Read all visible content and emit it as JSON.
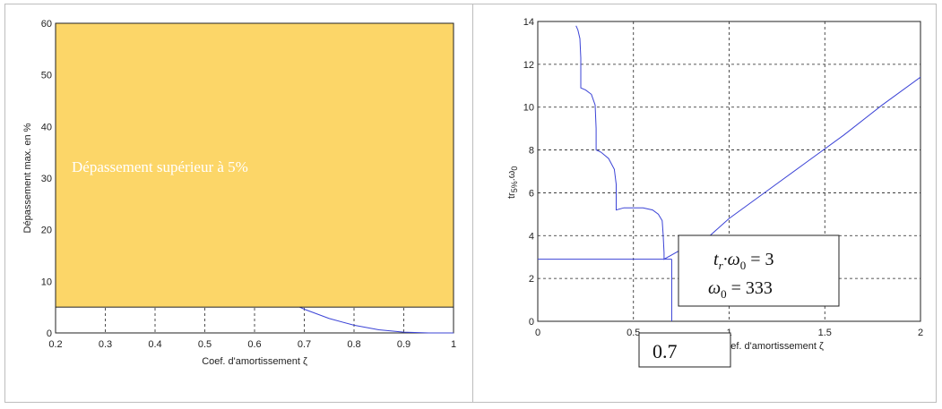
{
  "chart_data": [
    {
      "type": "line",
      "xlabel": "Coef. d'amortissement  ζ",
      "ylabel": "Dépassement max. en %",
      "xlim": [
        0.2,
        1.0
      ],
      "ylim": [
        0,
        60
      ],
      "xticks": [
        "0.2",
        "0.3",
        "0.4",
        "0.5",
        "0.6",
        "0.7",
        "0.8",
        "0.9",
        "1"
      ],
      "yticks": [
        "0",
        "10",
        "20",
        "30",
        "40",
        "50",
        "60"
      ],
      "grid": true,
      "colors": {
        "curve": "#3b43d6",
        "highlight": "#fcd668"
      },
      "series": [
        {
          "x": [
            0.6,
            0.65,
            0.7,
            0.75,
            0.8,
            0.85,
            0.9,
            0.95,
            1.0
          ],
          "y": [
            9.5,
            6.8,
            4.6,
            2.8,
            1.5,
            0.6,
            0.15,
            0.0,
            0.0
          ]
        }
      ],
      "region": {
        "x": [
          0.2,
          1.0
        ],
        "y": [
          5,
          60
        ],
        "label": "Dépassement supérieur à 5%"
      }
    },
    {
      "type": "line",
      "xlabel": "Coef. d'amortissement  ζ",
      "ylabel": "tr5%.ω0",
      "ylabel_main": "tr",
      "ylabel_sub": "5%",
      "ylabel_dot": ".ω",
      "ylabel_sub2": "0",
      "xlim": [
        0,
        2
      ],
      "ylim": [
        0,
        14
      ],
      "xticks": [
        "0",
        "0.5",
        "1",
        "1.5",
        "2"
      ],
      "yticks": [
        "0",
        "2",
        "4",
        "6",
        "8",
        "10",
        "12",
        "14"
      ],
      "grid": true,
      "colors": {
        "curve": "#3b43d6"
      },
      "series": [
        {
          "x": [
            0.2,
            0.21,
            0.22,
            0.225,
            0.225,
            0.25,
            0.28,
            0.3,
            0.305,
            0.305,
            0.33,
            0.37,
            0.4,
            0.41,
            0.41,
            0.45,
            0.5,
            0.55,
            0.6,
            0.63,
            0.65,
            0.655,
            0.66,
            0.66,
            0.7,
            0.8,
            0.9,
            1.0,
            1.2,
            1.4,
            1.6,
            1.8,
            2.0
          ],
          "y": [
            13.8,
            13.6,
            13.2,
            12.3,
            10.9,
            10.8,
            10.6,
            10.1,
            9.0,
            8.0,
            7.9,
            7.6,
            7.1,
            6.4,
            5.2,
            5.3,
            5.3,
            5.3,
            5.2,
            5.0,
            4.7,
            4.1,
            3.2,
            2.9,
            3.1,
            3.6,
            4.0,
            4.8,
            6.1,
            7.4,
            8.7,
            10.1,
            11.4
          ]
        }
      ],
      "guides": {
        "x": 0.7,
        "y": 2.9
      },
      "annotations": {
        "zeta_box": "0.7",
        "eq1_lhs_t": "t",
        "eq1_lhs_r": "r",
        "eq1_lhs_omega": "·ω",
        "eq1_lhs_0": "0",
        "eq1_rhs": " = 3",
        "eq2_omega": "ω",
        "eq2_0": "0",
        "eq2_rhs": " = 333"
      }
    }
  ]
}
